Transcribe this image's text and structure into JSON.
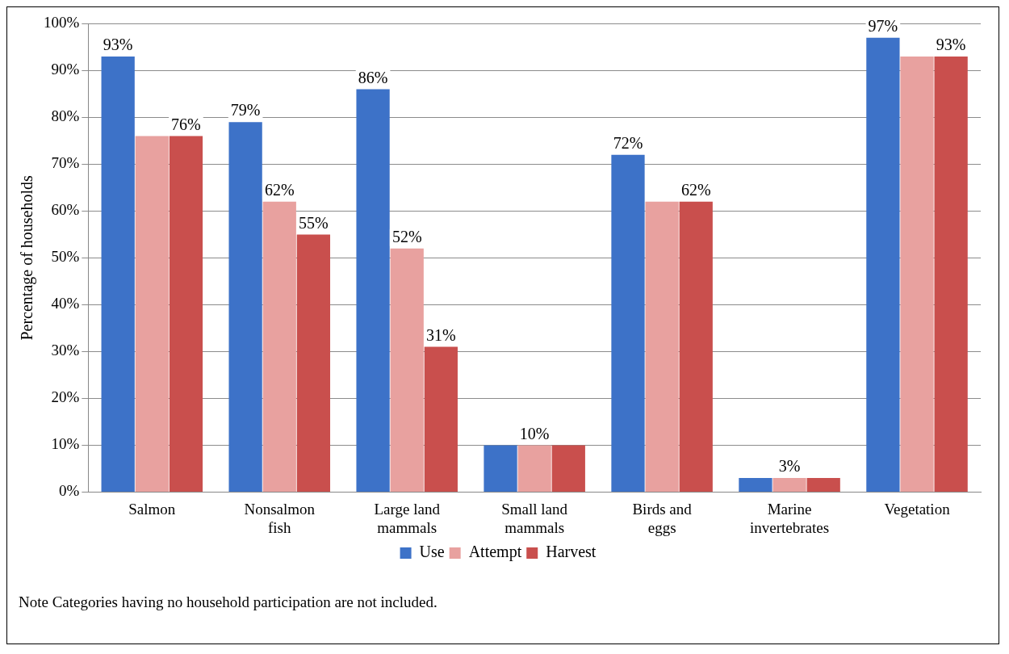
{
  "chart_data": {
    "type": "bar",
    "ylabel": "Percentage of households",
    "categories": [
      "Salmon",
      "Nonsalmon fish",
      "Large land mammals",
      "Small land mammals",
      "Birds and eggs",
      "Marine invertebrates",
      "Vegetation"
    ],
    "series": [
      {
        "name": "Use",
        "color": "#3d72c8",
        "values": [
          93,
          79,
          86,
          10,
          72,
          3,
          97
        ],
        "value_labels": [
          "93%",
          "79%",
          "86%",
          null,
          "72%",
          null,
          "97%"
        ]
      },
      {
        "name": "Attempt",
        "color": "#e8a19f",
        "values": [
          76,
          62,
          52,
          10,
          62,
          3,
          93
        ],
        "value_labels": [
          null,
          "62%",
          "52%",
          "10%",
          null,
          "3%",
          null
        ]
      },
      {
        "name": "Harvest",
        "color": "#c94f4d",
        "values": [
          76,
          55,
          31,
          10,
          62,
          3,
          93
        ],
        "value_labels": [
          "76%",
          "55%",
          "31%",
          null,
          "62%",
          null,
          "93%"
        ]
      }
    ],
    "ylim": [
      0,
      100
    ],
    "yticks": [
      {
        "value": 0,
        "label": "0%"
      },
      {
        "value": 10,
        "label": "10%"
      },
      {
        "value": 20,
        "label": "20%"
      },
      {
        "value": 30,
        "label": "30%"
      },
      {
        "value": 40,
        "label": "40%"
      },
      {
        "value": 50,
        "label": "50%"
      },
      {
        "value": 60,
        "label": "60%"
      },
      {
        "value": 70,
        "label": "70%"
      },
      {
        "value": 80,
        "label": "80%"
      },
      {
        "value": 90,
        "label": "90%"
      },
      {
        "value": 100,
        "label": "100%"
      }
    ],
    "grid": "y",
    "legend": "bottom",
    "annotations": [
      "Note Categories having no household participation are not included."
    ]
  }
}
